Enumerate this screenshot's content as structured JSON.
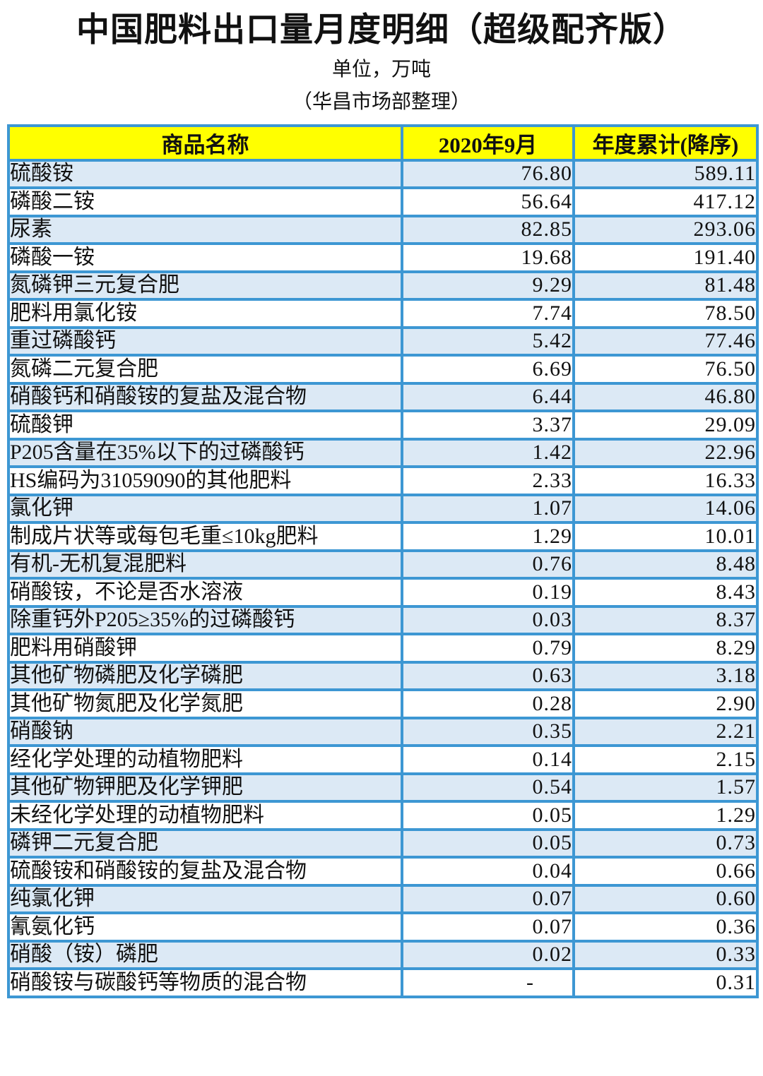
{
  "page": {
    "title": "中国肥料出口量月度明细（超级配齐版）",
    "subtitle_unit": "单位，万吨",
    "subtitle_source": "（华昌市场部整理）"
  },
  "colors": {
    "header_bg": "#FFFF00",
    "border": "#3D97D3",
    "row_alt_bg": "#DCE9F5",
    "row_bg": "#FFFFFF",
    "text": "#111111"
  },
  "table": {
    "columns": [
      "商品名称",
      "2020年9月",
      "年度累计(降序)"
    ],
    "rows": [
      [
        "硫酸铵",
        "76.80",
        "589.11"
      ],
      [
        "磷酸二铵",
        "56.64",
        "417.12"
      ],
      [
        "尿素",
        "82.85",
        "293.06"
      ],
      [
        "磷酸一铵",
        "19.68",
        "191.40"
      ],
      [
        "氮磷钾三元复合肥",
        "9.29",
        "81.48"
      ],
      [
        "肥料用氯化铵",
        "7.74",
        "78.50"
      ],
      [
        "重过磷酸钙",
        "5.42",
        "77.46"
      ],
      [
        "氮磷二元复合肥",
        "6.69",
        "76.50"
      ],
      [
        "硝酸钙和硝酸铵的复盐及混合物",
        "6.44",
        "46.80"
      ],
      [
        "硫酸钾",
        "3.37",
        "29.09"
      ],
      [
        "P205含量在35%以下的过磷酸钙",
        "1.42",
        "22.96"
      ],
      [
        "HS编码为31059090的其他肥料",
        "2.33",
        "16.33"
      ],
      [
        "氯化钾",
        "1.07",
        "14.06"
      ],
      [
        "制成片状等或每包毛重≤10kg肥料",
        "1.29",
        "10.01"
      ],
      [
        "有机-无机复混肥料",
        "0.76",
        "8.48"
      ],
      [
        "硝酸铵，不论是否水溶液",
        "0.19",
        "8.43"
      ],
      [
        "除重钙外P205≥35%的过磷酸钙",
        "0.03",
        "8.37"
      ],
      [
        "肥料用硝酸钾",
        "0.79",
        "8.29"
      ],
      [
        "其他矿物磷肥及化学磷肥",
        "0.63",
        "3.18"
      ],
      [
        "其他矿物氮肥及化学氮肥",
        "0.28",
        "2.90"
      ],
      [
        "硝酸钠",
        "0.35",
        "2.21"
      ],
      [
        "经化学处理的动植物肥料",
        "0.14",
        "2.15"
      ],
      [
        "其他矿物钾肥及化学钾肥",
        "0.54",
        "1.57"
      ],
      [
        "未经化学处理的动植物肥料",
        "0.05",
        "1.29"
      ],
      [
        "磷钾二元复合肥",
        "0.05",
        "0.73"
      ],
      [
        "硫酸铵和硝酸铵的复盐及混合物",
        "0.04",
        "0.66"
      ],
      [
        "纯氯化钾",
        "0.07",
        "0.60"
      ],
      [
        "氰氨化钙",
        "0.07",
        "0.36"
      ],
      [
        "硝酸（铵）磷肥",
        "0.02",
        "0.33"
      ],
      [
        "硝酸铵与碳酸钙等物质的混合物",
        "-",
        "0.31"
      ]
    ]
  }
}
